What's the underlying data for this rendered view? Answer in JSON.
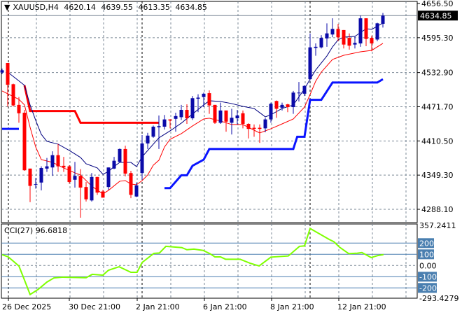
{
  "header": {
    "symbol": "XAUUSD,H4",
    "open": "4620.14",
    "high": "4639.55",
    "low": "4613.35",
    "close": "4634.85"
  },
  "cci_panel": {
    "name": "CCI(27)",
    "value": "96.6818",
    "axis_labels": [
      "357.2411",
      "200",
      "100",
      "0.00",
      "-100",
      "-200",
      "-293.4279"
    ]
  },
  "colors": {
    "bull": "#0a0aa8",
    "bear": "#ff0000",
    "fast_ma": "#000080",
    "slow_band": "#ff0000",
    "stop_upper": "#ff0000",
    "stop_lower": "#0a14ff",
    "cci": "#7fff00",
    "level_box": "#4a7fb0"
  },
  "chart_data": {
    "type": "candlestick",
    "symbol": "XAUUSD",
    "timeframe": "H4",
    "price_axis_labels": [
      "4656.50",
      "4595.30",
      "4532.90",
      "4471.70",
      "4410.50",
      "4349.30",
      "4288.10"
    ],
    "current_price_label": "4634.85",
    "ylim": [
      4288.1,
      4656.5
    ],
    "x_tick_labels": [
      "26 Dec 2025",
      "30 Dec 21:00",
      "2 Jan 21:00",
      "6 Jan 21:00",
      "8 Jan 21:00",
      "12 Jan 21:00"
    ],
    "candles_ohlc": [
      [
        4533,
        4540,
        4530,
        4537
      ],
      [
        4550,
        4550,
        4472,
        4511
      ],
      [
        4512,
        4513,
        4472,
        4474
      ],
      [
        4475,
        4489,
        4443,
        4460
      ],
      [
        4461,
        4466,
        4357,
        4358
      ],
      [
        4361,
        4361,
        4301,
        4330
      ],
      [
        4332,
        4344,
        4325,
        4333
      ],
      [
        4336,
        4365,
        4322,
        4362
      ],
      [
        4361,
        4380,
        4355,
        4365
      ],
      [
        4363,
        4392,
        4348,
        4385
      ],
      [
        4385,
        4405,
        4355,
        4365
      ],
      [
        4366,
        4382,
        4355,
        4363
      ],
      [
        4365,
        4367,
        4334,
        4337
      ],
      [
        4341,
        4373,
        4327,
        4348
      ],
      [
        4348,
        4360,
        4273,
        4327
      ],
      [
        4328,
        4337,
        4302,
        4306
      ],
      [
        4304,
        4353,
        4302,
        4346
      ],
      [
        4346,
        4346,
        4314,
        4318
      ],
      [
        4320,
        4323,
        4309,
        4309
      ],
      [
        4328,
        4363,
        4323,
        4363
      ],
      [
        4361,
        4382,
        4360,
        4375
      ],
      [
        4373,
        4397,
        4372,
        4396
      ],
      [
        4396,
        4402,
        4347,
        4352
      ],
      [
        4353,
        4357,
        4308,
        4314
      ],
      [
        4311,
        4336,
        4310,
        4331
      ],
      [
        4353,
        4421,
        4341,
        4406
      ],
      [
        4406,
        4425,
        4396,
        4420
      ],
      [
        4418,
        4438,
        4416,
        4436
      ],
      [
        4435,
        4456,
        4396,
        4437
      ],
      [
        4436,
        4457,
        4431,
        4449
      ],
      [
        4449,
        4449,
        4433,
        4447
      ],
      [
        4450,
        4461,
        4427,
        4455
      ],
      [
        4453,
        4475,
        4448,
        4466
      ],
      [
        4466,
        4476,
        4441,
        4451
      ],
      [
        4451,
        4491,
        4448,
        4487
      ],
      [
        4486,
        4494,
        4462,
        4488
      ],
      [
        4489,
        4497,
        4471,
        4495
      ],
      [
        4496,
        4501,
        4459,
        4474
      ],
      [
        4475,
        4475,
        4441,
        4443
      ],
      [
        4443,
        4479,
        4441,
        4465
      ],
      [
        4465,
        4465,
        4427,
        4445
      ],
      [
        4443,
        4468,
        4422,
        4452
      ],
      [
        4451,
        4466,
        4440,
        4456
      ],
      [
        4460,
        4465,
        4433,
        4441
      ],
      [
        4441,
        4442,
        4415,
        4432
      ],
      [
        4434,
        4440,
        4418,
        4432
      ],
      [
        4434,
        4440,
        4407,
        4432
      ],
      [
        4433,
        4452,
        4426,
        4449
      ],
      [
        4449,
        4479,
        4443,
        4477
      ],
      [
        4482,
        4483,
        4452,
        4468
      ],
      [
        4470,
        4479,
        4465,
        4475
      ],
      [
        4476,
        4477,
        4462,
        4471
      ],
      [
        4471,
        4500,
        4459,
        4497
      ],
      [
        4496,
        4516,
        4481,
        4497
      ],
      [
        4495,
        4510,
        4491,
        4509
      ],
      [
        4521,
        4603,
        4519,
        4578
      ],
      [
        4577,
        4585,
        4563,
        4579
      ],
      [
        4578,
        4600,
        4576,
        4595
      ],
      [
        4594,
        4621,
        4579,
        4603
      ],
      [
        4601,
        4630,
        4596,
        4611
      ],
      [
        4611,
        4620,
        4589,
        4596
      ],
      [
        4609,
        4609,
        4576,
        4583
      ],
      [
        4595,
        4603,
        4574,
        4581
      ],
      [
        4583,
        4598,
        4576,
        4586
      ],
      [
        4585,
        4635,
        4579,
        4630
      ],
      [
        4630,
        4630,
        4580,
        4593
      ],
      [
        4595,
        4599,
        4571,
        4585
      ],
      [
        4592,
        4622,
        4589,
        4621
      ],
      [
        4620.14,
        4639.55,
        4613.35,
        4634.85
      ]
    ],
    "first_candle_index": -1,
    "fast_ma": [
      [
        0,
        4533.7
      ],
      [
        3,
        4510
      ],
      [
        4,
        4474.9
      ],
      [
        5,
        4447.3
      ],
      [
        6,
        4422.2
      ],
      [
        7,
        4409.7
      ],
      [
        9,
        4404.7
      ],
      [
        11,
        4393.4
      ],
      [
        13,
        4380.9
      ],
      [
        14,
        4369.6
      ],
      [
        16,
        4362.1
      ],
      [
        17,
        4350.8
      ],
      [
        18,
        4355.8
      ],
      [
        19,
        4364.6
      ],
      [
        20,
        4372.1
      ],
      [
        22,
        4372
      ],
      [
        23,
        4364.6
      ],
      [
        24,
        4382.1
      ],
      [
        27,
        4416
      ],
      [
        29,
        4428.5
      ],
      [
        31,
        4442.3
      ],
      [
        33,
        4458.6
      ],
      [
        35,
        4474.9
      ],
      [
        36,
        4482.4
      ],
      [
        38,
        4481.1
      ],
      [
        40,
        4477.4
      ],
      [
        42,
        4472.3
      ],
      [
        44,
        4468.6
      ],
      [
        45,
        4461.1
      ],
      [
        46,
        4453.6
      ],
      [
        47,
        4457.3
      ],
      [
        49,
        4468.6
      ],
      [
        51,
        4474.9
      ],
      [
        53,
        4503.7
      ],
      [
        54,
        4521.2
      ],
      [
        55,
        4537.5
      ],
      [
        57,
        4562.6
      ],
      [
        58,
        4578.8
      ],
      [
        59,
        4591.4
      ],
      [
        60,
        4596.4
      ],
      [
        62,
        4597.6
      ],
      [
        64,
        4611.4
      ],
      [
        65,
        4610.2
      ],
      [
        67,
        4621.5
      ]
    ],
    "slow_band": [
      [
        -1,
        4499.9
      ],
      [
        0,
        4494.9
      ],
      [
        2,
        4484.9
      ],
      [
        3,
        4474.9
      ],
      [
        4,
        4434.8
      ],
      [
        5,
        4399.7
      ],
      [
        6,
        4377.1
      ],
      [
        8,
        4372.1
      ],
      [
        10,
        4362.1
      ],
      [
        12,
        4353.3
      ],
      [
        13,
        4349.6
      ],
      [
        15,
        4329.5
      ],
      [
        17,
        4315.7
      ],
      [
        18,
        4322
      ],
      [
        20,
        4338.3
      ],
      [
        21,
        4339.5
      ],
      [
        22,
        4333.3
      ],
      [
        23,
        4332
      ],
      [
        24,
        4339.5
      ],
      [
        25,
        4349.6
      ],
      [
        26,
        4367.1
      ],
      [
        27,
        4375.9
      ],
      [
        28,
        4399.7
      ],
      [
        29,
        4413.4
      ],
      [
        31,
        4423.5
      ],
      [
        33,
        4437.3
      ],
      [
        35,
        4449.8
      ],
      [
        36,
        4451.1
      ],
      [
        38,
        4446.1
      ],
      [
        40,
        4439.8
      ],
      [
        42,
        4439.8
      ],
      [
        44,
        4429.7
      ],
      [
        45,
        4424.7
      ],
      [
        47,
        4432.3
      ],
      [
        49,
        4441
      ],
      [
        51,
        4449.8
      ],
      [
        53,
        4471.1
      ],
      [
        54,
        4493.6
      ],
      [
        55,
        4517.5
      ],
      [
        56,
        4533.7
      ],
      [
        58,
        4556.3
      ],
      [
        60,
        4563.8
      ],
      [
        63,
        4570.1
      ],
      [
        65,
        4572.6
      ],
      [
        67,
        4585.1
      ]
    ],
    "stop_upper": [
      [
        3,
        4510
      ],
      [
        4,
        4464
      ],
      [
        12,
        4464
      ],
      [
        13,
        4443
      ],
      [
        27,
        4443
      ]
    ],
    "stop_lower": [
      [
        [
          -1,
          4432
        ],
        [
          2,
          4432
        ]
      ],
      [
        [
          28,
          4326
        ],
        [
          29,
          4326
        ],
        [
          31,
          4349
        ],
        [
          32,
          4349
        ],
        [
          33,
          4366
        ],
        [
          35,
          4377
        ],
        [
          36,
          4396
        ],
        [
          51,
          4396
        ],
        [
          51.7,
          4418
        ],
        [
          53,
          4418
        ],
        [
          54,
          4484
        ],
        [
          56,
          4484
        ],
        [
          58,
          4515
        ],
        [
          66,
          4515
        ],
        [
          67,
          4521
        ]
      ]
    ],
    "cci": {
      "period": 27,
      "ylim": [
        -293.4279,
        357.2411
      ],
      "levels": [
        200,
        100,
        0,
        -100,
        -200
      ],
      "points": [
        [
          -1,
          97
        ],
        [
          0.1,
          77
        ],
        [
          2,
          -4
        ],
        [
          2.75,
          -98
        ],
        [
          4,
          -259
        ],
        [
          5.5,
          -211
        ],
        [
          7,
          -148
        ],
        [
          8.25,
          -111
        ],
        [
          9.9,
          -104
        ],
        [
          14,
          -109
        ],
        [
          15.1,
          -79
        ],
        [
          17,
          -86
        ],
        [
          18,
          -42
        ],
        [
          19.9,
          -11
        ],
        [
          22,
          -61
        ],
        [
          23.1,
          -61
        ],
        [
          24,
          27
        ],
        [
          26.1,
          108
        ],
        [
          27.1,
          112
        ],
        [
          28.25,
          171
        ],
        [
          31.1,
          160
        ],
        [
          32,
          141
        ],
        [
          33.25,
          146
        ],
        [
          34.9,
          135
        ],
        [
          36.1,
          106
        ],
        [
          37,
          77
        ],
        [
          38,
          77
        ],
        [
          38.9,
          56
        ],
        [
          41.5,
          56
        ],
        [
          43.25,
          21
        ],
        [
          44.9,
          -4
        ],
        [
          47,
          75
        ],
        [
          50.1,
          85
        ],
        [
          52.1,
          171
        ],
        [
          53,
          175
        ],
        [
          54,
          331
        ],
        [
          57.4,
          233
        ],
        [
          58.25,
          212
        ],
        [
          59.25,
          164
        ],
        [
          60.9,
          106
        ],
        [
          62.4,
          110
        ],
        [
          63.25,
          116
        ],
        [
          64.9,
          71
        ],
        [
          66.1,
          89
        ],
        [
          67.1,
          97
        ]
      ]
    }
  }
}
